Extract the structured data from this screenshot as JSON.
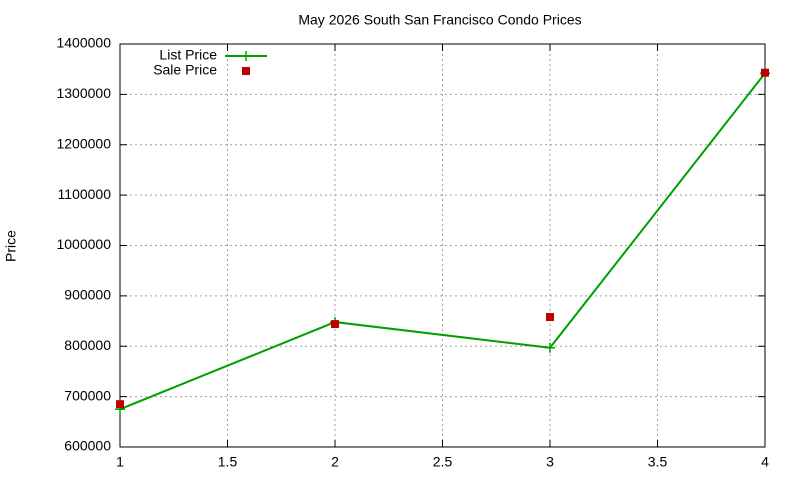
{
  "chart_data": {
    "type": "line",
    "title": "May 2026 South San Francisco Condo Prices",
    "ylabel": "Price",
    "x": [
      1,
      2,
      3,
      4
    ],
    "series": [
      {
        "name": "List Price",
        "color": "#00a000",
        "values": [
          675000,
          848000,
          797000,
          1342000
        ],
        "line": true,
        "marker": "plus"
      },
      {
        "name": "Sale Price",
        "color": "#c00000",
        "values": [
          685000,
          844000,
          858000,
          1343000
        ],
        "line": false,
        "marker": "square"
      }
    ],
    "xlim": [
      1,
      4
    ],
    "xticks": [
      1,
      1.5,
      2,
      2.5,
      3,
      3.5,
      4
    ],
    "ylim": [
      600000,
      1400000
    ],
    "yticks": [
      600000,
      700000,
      800000,
      900000,
      1000000,
      1100000,
      1200000,
      1300000,
      1400000
    ],
    "grid": true,
    "legend": "top-left"
  }
}
